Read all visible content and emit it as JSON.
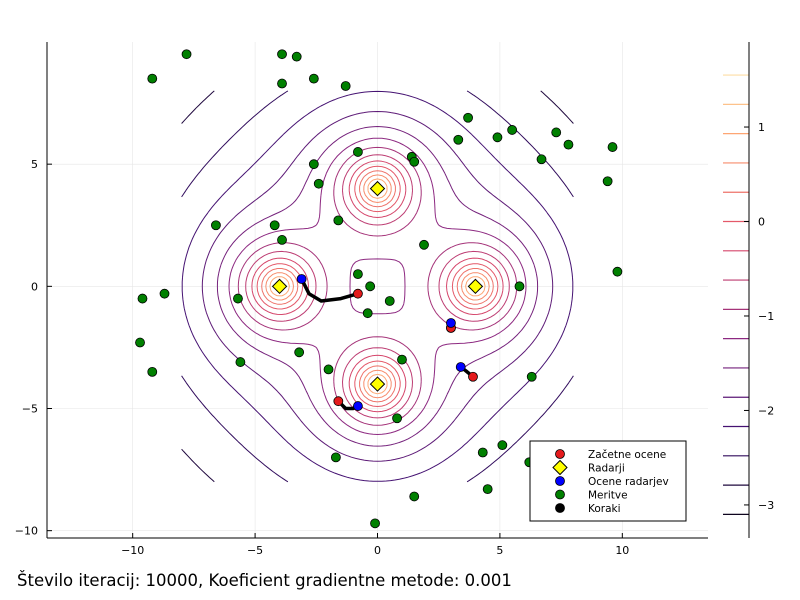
{
  "caption": "Število iteracij: 10000, Koeficient gradientne metode: 0.001",
  "chart_data": {
    "type": "scatter",
    "xlim": [
      -13.5,
      13.5
    ],
    "ylim": [
      -10.3,
      10.0
    ],
    "xticks": [
      -10,
      -5,
      0,
      5,
      10
    ],
    "yticks": [
      -10,
      -5,
      0,
      5
    ],
    "xtick_labels": [
      "−10",
      "−5",
      "0",
      "5",
      "10"
    ],
    "ytick_labels": [
      "−10",
      "−5",
      "0",
      "5"
    ],
    "grid": true,
    "legend_position": "bottom-right",
    "contour_field": {
      "centers": [
        [
          -4,
          0
        ],
        [
          4,
          0
        ],
        [
          0,
          4
        ],
        [
          0,
          -4
        ]
      ],
      "colorbar_ticks": [
        1,
        0,
        -1,
        -2,
        -3
      ],
      "colorbar_tick_labels": [
        "1",
        "0",
        "−1",
        "−2",
        "−3"
      ],
      "colorbar_range": [
        -3.35,
        1.9
      ],
      "colormap": [
        "#000004",
        "#3b0f70",
        "#8c2981",
        "#de4968",
        "#fe9f6d",
        "#fcfdbf"
      ]
    },
    "series": [
      {
        "name": "Začetne ocene",
        "color": "#e41a1c",
        "marker": "circle",
        "x": [
          -0.8,
          3.0,
          3.9,
          -1.6
        ],
        "y": [
          -0.3,
          -1.7,
          -3.7,
          -4.7
        ]
      },
      {
        "name": "Radarji",
        "color": "#ffff00",
        "marker": "diamond",
        "x": [
          -4,
          4,
          0,
          0
        ],
        "y": [
          0,
          0,
          4,
          -4
        ]
      },
      {
        "name": "Ocene radarjev",
        "color": "#0000ff",
        "marker": "circle",
        "x": [
          -3.1,
          3.0,
          3.4,
          -0.8
        ],
        "y": [
          0.3,
          -1.5,
          -3.3,
          -4.9
        ]
      },
      {
        "name": "Meritve",
        "color": "#008000",
        "marker": "circle",
        "x": [
          -7.8,
          -3.9,
          -3.3,
          -9.2,
          -3.9,
          -2.6,
          -1.3,
          3.7,
          5.5,
          4.9,
          3.3,
          7.3,
          7.8,
          -0.8,
          1.4,
          1.5,
          -2.6,
          -2.4,
          6.7,
          9.6,
          9.4,
          -6.6,
          -4.2,
          -1.6,
          -3.9,
          1.9,
          5.8,
          9.8,
          -0.8,
          -0.3,
          0.5,
          -9.6,
          -8.7,
          -5.7,
          -0.4,
          3.0,
          -9.7,
          -5.6,
          -3.2,
          -2.0,
          1.0,
          -9.2,
          6.3,
          0.8,
          5.1,
          4.3,
          -1.7,
          6.2,
          4.5,
          1.5,
          -0.1
        ],
        "y": [
          9.5,
          9.5,
          9.4,
          8.5,
          8.3,
          8.5,
          8.2,
          6.9,
          6.4,
          6.1,
          6.0,
          6.3,
          5.8,
          5.5,
          5.3,
          5.1,
          5.0,
          4.2,
          5.2,
          5.7,
          4.3,
          2.5,
          2.5,
          2.7,
          1.9,
          1.7,
          0.0,
          0.6,
          0.5,
          0.0,
          -0.6,
          -0.5,
          -0.3,
          -0.5,
          -1.1,
          -1.7,
          -2.3,
          -3.1,
          -2.7,
          -3.4,
          -3.0,
          -3.5,
          -3.7,
          -5.4,
          -6.5,
          -6.8,
          -7.0,
          -7.2,
          -8.3,
          -8.6,
          -9.7
        ]
      },
      {
        "name": "Koraki",
        "color": "#000000",
        "marker": "circle",
        "paths": [
          {
            "x": [
              -0.8,
              -1.5,
              -2.3,
              -2.8,
              -3.1
            ],
            "y": [
              -0.3,
              -0.5,
              -0.6,
              -0.3,
              0.3
            ]
          },
          {
            "x": [
              3.0,
              3.0
            ],
            "y": [
              -1.7,
              -1.5
            ]
          },
          {
            "x": [
              3.9,
              3.6,
              3.4
            ],
            "y": [
              -3.7,
              -3.45,
              -3.3
            ]
          },
          {
            "x": [
              -1.6,
              -1.3,
              -1.0,
              -0.8
            ],
            "y": [
              -4.7,
              -5.0,
              -5.0,
              -4.9
            ]
          }
        ]
      }
    ]
  }
}
